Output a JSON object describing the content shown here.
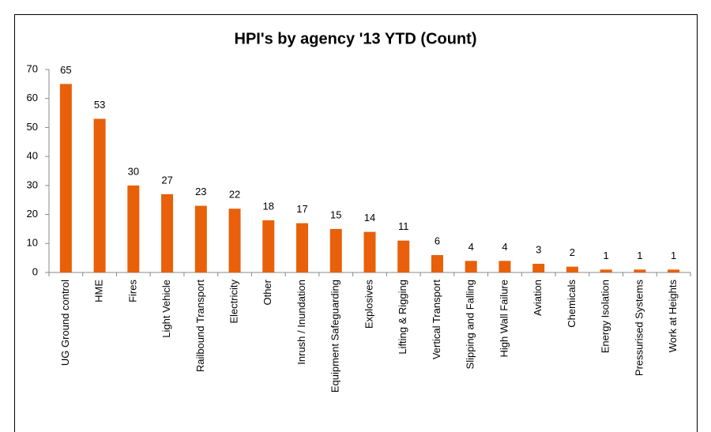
{
  "chart_data": {
    "type": "bar",
    "title": "HPI's by agency '13 YTD (Count)",
    "categories": [
      "UG Ground control",
      "HME",
      "Fires",
      "Light Vehicle",
      "Railbound Transport",
      "Electricity",
      "Other",
      "Inrush / Inundation",
      "Equipment Safeguarding",
      "Explosives",
      "Lifting & Rigging",
      "Vertical Transport",
      "Slipping and Falling",
      "High Wall Failure",
      "Aviation",
      "Chemicals",
      "Energy Isolation",
      "Pressurised Systems",
      "Work at Heights"
    ],
    "values": [
      65,
      53,
      30,
      27,
      23,
      22,
      18,
      17,
      15,
      14,
      11,
      6,
      4,
      4,
      3,
      2,
      1,
      1,
      1
    ],
    "color": "#e8600a",
    "ylim": [
      0,
      70
    ],
    "yticks": [
      0,
      10,
      20,
      30,
      40,
      50,
      60,
      70
    ],
    "grid": false
  }
}
